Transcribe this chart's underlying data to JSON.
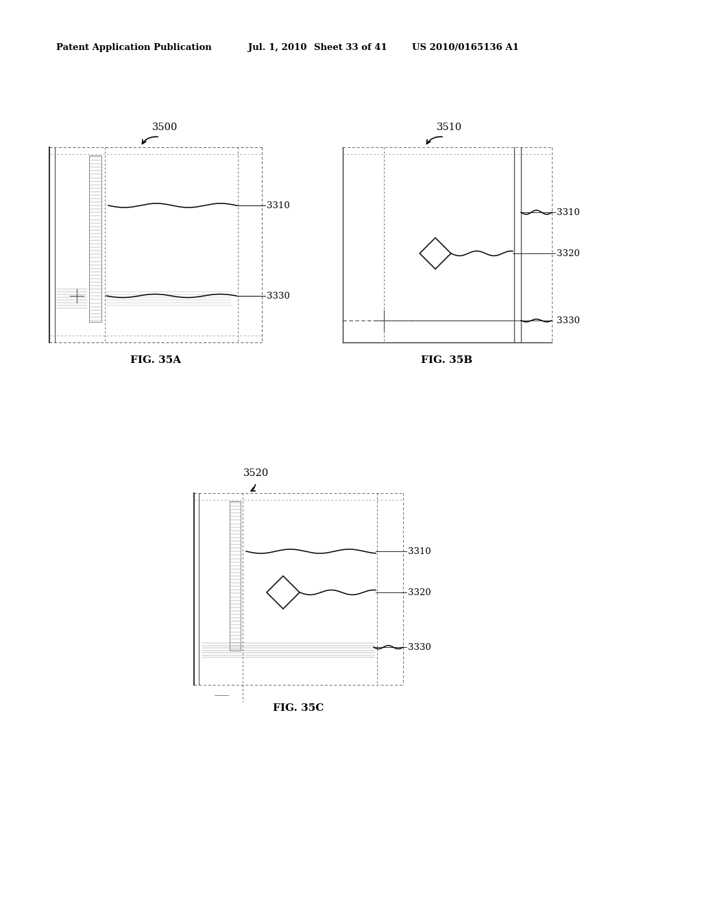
{
  "background_color": "#ffffff",
  "header_text": "Patent Application Publication",
  "header_date": "Jul. 1, 2010",
  "header_sheet": "Sheet 33 of 41",
  "header_patent": "US 2010/0165136 A1",
  "fig_35a_label": "FIG. 35A",
  "fig_35b_label": "FIG. 35B",
  "fig_35c_label": "FIG. 35C",
  "label_3500": "3500",
  "label_3510": "3510",
  "label_3520": "3520",
  "label_3310": "3310",
  "label_3320": "3320",
  "label_3330": "3330",
  "text_color": "#000000",
  "dashed_color": "#666666"
}
